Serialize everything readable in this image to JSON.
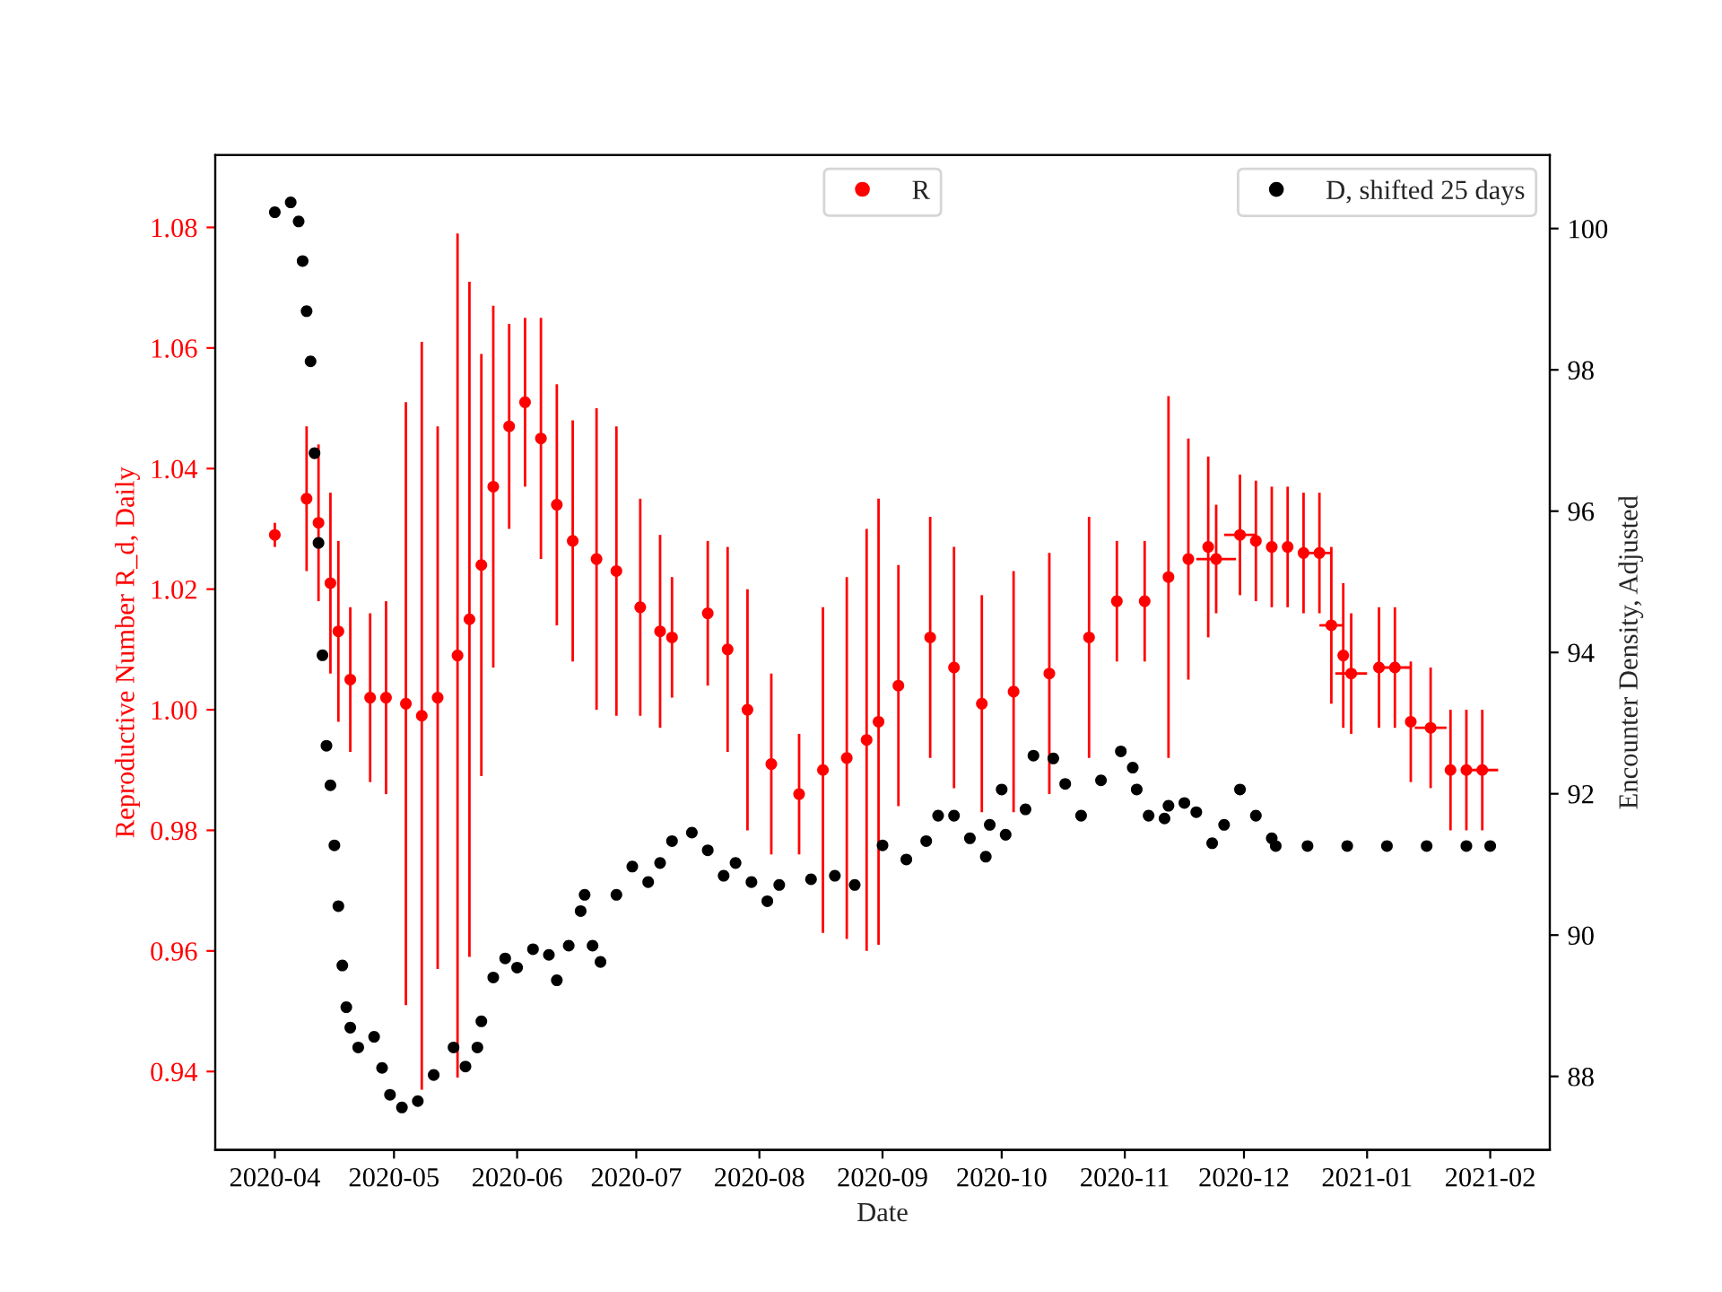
{
  "chart_data": {
    "type": "scatter",
    "xlabel": "Date",
    "ylabel": "Reproductive Number R_d, Daily",
    "y2label": "Encounter Density, Adjusted",
    "xlim": [
      "2020-03-17",
      "2021-02-16"
    ],
    "xticks": [
      {
        "value": "2020-04-01",
        "label": "2020-04"
      },
      {
        "value": "2020-05-01",
        "label": "2020-05"
      },
      {
        "value": "2020-06-01",
        "label": "2020-06"
      },
      {
        "value": "2020-07-01",
        "label": "2020-07"
      },
      {
        "value": "2020-08-01",
        "label": "2020-08"
      },
      {
        "value": "2020-09-01",
        "label": "2020-09"
      },
      {
        "value": "2020-10-01",
        "label": "2020-10"
      },
      {
        "value": "2020-11-01",
        "label": "2020-11"
      },
      {
        "value": "2020-12-01",
        "label": "2020-12"
      },
      {
        "value": "2021-01-01",
        "label": "2021-01"
      },
      {
        "value": "2021-02-01",
        "label": "2021-02"
      }
    ],
    "ylim": [
      0.927,
      1.092
    ],
    "yticks": [
      {
        "value": 0.94,
        "label": "0.94"
      },
      {
        "value": 0.96,
        "label": "0.96"
      },
      {
        "value": 0.98,
        "label": "0.98"
      },
      {
        "value": 1.0,
        "label": "1.00"
      },
      {
        "value": 1.02,
        "label": "1.02"
      },
      {
        "value": 1.04,
        "label": "1.04"
      },
      {
        "value": 1.06,
        "label": "1.06"
      },
      {
        "value": 1.08,
        "label": "1.08"
      }
    ],
    "y2lim": [
      86.96,
      101.04
    ],
    "y2ticks": [
      88,
      90,
      92,
      94,
      96,
      98,
      100
    ],
    "legend": "top right",
    "marker": "circle",
    "grid": false,
    "series": [
      {
        "name": "R",
        "color": "#ff0000",
        "x": [
          "2020-04-01",
          "2020-04-09",
          "2020-04-12",
          "2020-04-15",
          "2020-04-17",
          "2020-04-20",
          "2020-04-25",
          "2020-04-29",
          "2020-05-04",
          "2020-05-08",
          "2020-05-12",
          "2020-05-17",
          "2020-05-20",
          "2020-05-23",
          "2020-05-26",
          "2020-05-30",
          "2020-06-03",
          "2020-06-07",
          "2020-06-11",
          "2020-06-15",
          "2020-06-21",
          "2020-06-26",
          "2020-07-02",
          "2020-07-07",
          "2020-07-10",
          "2020-07-19",
          "2020-07-24",
          "2020-07-29",
          "2020-08-04",
          "2020-08-11",
          "2020-08-17",
          "2020-08-23",
          "2020-08-28",
          "2020-08-31",
          "2020-09-05",
          "2020-09-13",
          "2020-09-19",
          "2020-09-26",
          "2020-10-04",
          "2020-10-13",
          "2020-10-23",
          "2020-10-30",
          "2020-11-06",
          "2020-11-12",
          "2020-11-17",
          "2020-11-22",
          "2020-11-24",
          "2020-11-30",
          "2020-12-04",
          "2020-12-08",
          "2020-12-12",
          "2020-12-16",
          "2020-12-20",
          "2020-12-23",
          "2020-12-26",
          "2020-12-28",
          "2021-01-04",
          "2021-01-08",
          "2021-01-12",
          "2021-01-17",
          "2021-01-22",
          "2021-01-26",
          "2021-01-30"
        ],
        "values": [
          1.029,
          1.035,
          1.031,
          1.021,
          1.013,
          1.005,
          1.002,
          1.002,
          1.001,
          0.999,
          1.002,
          1.009,
          1.015,
          1.024,
          1.037,
          1.047,
          1.051,
          1.045,
          1.034,
          1.028,
          1.025,
          1.023,
          1.017,
          1.013,
          1.012,
          1.016,
          1.01,
          1.0,
          0.991,
          0.986,
          0.99,
          0.992,
          0.995,
          0.998,
          1.004,
          1.012,
          1.007,
          1.001,
          1.003,
          1.006,
          1.012,
          1.018,
          1.018,
          1.022,
          1.025,
          1.027,
          1.025,
          1.029,
          1.028,
          1.027,
          1.027,
          1.026,
          1.026,
          1.014,
          1.009,
          1.006,
          1.007,
          1.007,
          0.998,
          0.997,
          0.99,
          0.99,
          0.99
        ],
        "errors": [
          0.002,
          0.012,
          0.013,
          0.015,
          0.015,
          0.012,
          0.014,
          0.016,
          0.05,
          0.062,
          0.045,
          0.07,
          0.056,
          0.035,
          0.03,
          0.017,
          0.014,
          0.02,
          0.02,
          0.02,
          0.025,
          0.024,
          0.018,
          0.016,
          0.01,
          0.012,
          0.017,
          0.02,
          0.015,
          0.01,
          0.027,
          0.03,
          0.035,
          0.037,
          0.02,
          0.02,
          0.02,
          0.018,
          0.02,
          0.02,
          0.02,
          0.01,
          0.01,
          0.03,
          0.02,
          0.015,
          0.009,
          0.01,
          0.01,
          0.01,
          0.01,
          0.01,
          0.01,
          0.013,
          0.012,
          0.01,
          0.01,
          0.01,
          0.01,
          0.01,
          0.01,
          0.01,
          0.01
        ],
        "xerrors": [
          null,
          null,
          null,
          null,
          null,
          null,
          null,
          null,
          null,
          null,
          null,
          null,
          null,
          null,
          null,
          null,
          null,
          null,
          null,
          null,
          null,
          null,
          null,
          null,
          null,
          null,
          null,
          null,
          null,
          null,
          null,
          null,
          null,
          null,
          null,
          null,
          null,
          null,
          null,
          null,
          null,
          null,
          null,
          null,
          null,
          null,
          5,
          4,
          null,
          null,
          null,
          null,
          3,
          3,
          null,
          4,
          null,
          4,
          null,
          4,
          null,
          null,
          4
        ]
      },
      {
        "name": "D, shifted 25 days",
        "color": "#000000",
        "axis": "y2",
        "x": [
          "2020-04-01",
          "2020-04-05",
          "2020-04-07",
          "2020-04-08",
          "2020-04-09",
          "2020-04-10",
          "2020-04-11",
          "2020-04-12",
          "2020-04-13",
          "2020-04-14",
          "2020-04-15",
          "2020-04-16",
          "2020-04-17",
          "2020-04-18",
          "2020-04-19",
          "2020-04-20",
          "2020-04-22",
          "2020-04-26",
          "2020-04-28",
          "2020-04-30",
          "2020-05-03",
          "2020-05-07",
          "2020-05-11",
          "2020-05-16",
          "2020-05-19",
          "2020-05-22",
          "2020-05-23",
          "2020-05-26",
          "2020-05-29",
          "2020-06-01",
          "2020-06-05",
          "2020-06-09",
          "2020-06-11",
          "2020-06-14",
          "2020-06-17",
          "2020-06-18",
          "2020-06-20",
          "2020-06-22",
          "2020-06-26",
          "2020-06-30",
          "2020-07-04",
          "2020-07-07",
          "2020-07-10",
          "2020-07-15",
          "2020-07-19",
          "2020-07-23",
          "2020-07-26",
          "2020-07-30",
          "2020-08-03",
          "2020-08-06",
          "2020-08-14",
          "2020-08-20",
          "2020-08-25",
          "2020-09-01",
          "2020-09-07",
          "2020-09-12",
          "2020-09-15",
          "2020-09-19",
          "2020-09-23",
          "2020-09-27",
          "2020-09-28",
          "2020-10-01",
          "2020-10-02",
          "2020-10-07",
          "2020-10-09",
          "2020-10-14",
          "2020-10-17",
          "2020-10-21",
          "2020-10-26",
          "2020-10-31",
          "2020-11-03",
          "2020-11-04",
          "2020-11-07",
          "2020-11-11",
          "2020-11-12",
          "2020-11-16",
          "2020-11-19",
          "2020-11-23",
          "2020-11-26",
          "2020-11-30",
          "2020-12-04",
          "2020-12-08",
          "2020-12-09",
          "2020-12-17",
          "2020-12-27",
          "2021-01-06",
          "2021-01-16",
          "2021-01-26",
          "2021-02-01"
        ],
        "values": [
          100.23,
          100.37,
          100.1,
          99.54,
          98.83,
          98.12,
          96.82,
          95.55,
          93.96,
          92.68,
          92.12,
          91.27,
          90.41,
          89.57,
          88.98,
          88.69,
          88.41,
          88.56,
          88.12,
          87.74,
          87.56,
          87.65,
          88.02,
          88.41,
          88.14,
          88.41,
          88.78,
          89.4,
          89.67,
          89.54,
          89.8,
          89.72,
          89.36,
          89.85,
          90.34,
          90.57,
          89.85,
          89.62,
          90.57,
          90.97,
          90.75,
          91.02,
          91.33,
          91.45,
          91.2,
          90.84,
          91.02,
          90.75,
          90.48,
          90.71,
          90.79,
          90.84,
          90.71,
          91.27,
          91.07,
          91.33,
          91.69,
          91.69,
          91.37,
          91.11,
          91.56,
          92.06,
          91.42,
          91.78,
          92.54,
          92.5,
          92.14,
          91.69,
          92.19,
          92.6,
          92.37,
          92.06,
          91.69,
          91.65,
          91.83,
          91.87,
          91.74,
          91.3,
          91.56,
          92.06,
          91.69,
          91.37,
          91.26,
          91.26,
          91.26,
          91.26,
          91.26,
          91.26,
          91.26
        ]
      }
    ]
  }
}
